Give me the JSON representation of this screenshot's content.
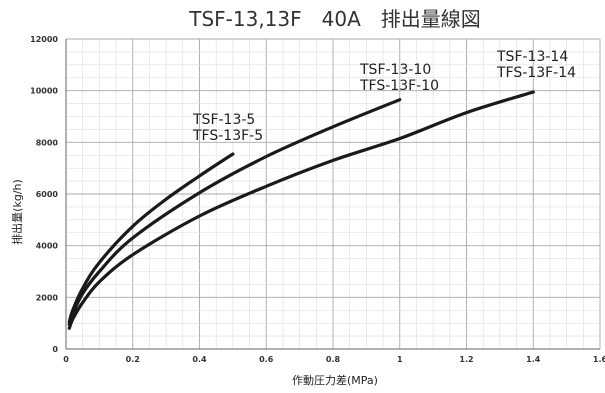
{
  "chart_data": {
    "type": "line",
    "title": "TSF-13,13F　40A　排出量線図",
    "xlabel": "作動圧力差(MPa)",
    "ylabel": "排出量(kg/h)",
    "xlim": [
      0,
      1.6
    ],
    "ylim": [
      0,
      12000
    ],
    "x_ticks": [
      "0",
      "0.2",
      "0.4",
      "0.6",
      "0.8",
      "1",
      "1.2",
      "1.4",
      "1.6"
    ],
    "y_ticks": [
      "0",
      "2000",
      "4000",
      "6000",
      "8000",
      "10000",
      "12000"
    ],
    "grid": true,
    "series": [
      {
        "label_lines": [
          "TSF-13-5",
          "TFS-13F-5"
        ],
        "x": [
          0.01,
          0.02,
          0.05,
          0.1,
          0.2,
          0.3,
          0.4,
          0.5
        ],
        "y": [
          1050,
          1500,
          2350,
          3350,
          4750,
          5800,
          6700,
          7550
        ]
      },
      {
        "label_lines": [
          "TSF-13-10",
          "TFS-13F-10"
        ],
        "x": [
          0.01,
          0.02,
          0.05,
          0.1,
          0.2,
          0.4,
          0.6,
          0.8,
          1.0
        ],
        "y": [
          950,
          1350,
          2150,
          3000,
          4300,
          6050,
          7450,
          8600,
          9650
        ]
      },
      {
        "label_lines": [
          "TSF-13-14",
          "TFS-13F-14"
        ],
        "x": [
          0.01,
          0.02,
          0.05,
          0.1,
          0.2,
          0.4,
          0.6,
          0.8,
          1.0,
          1.2,
          1.4
        ],
        "y": [
          800,
          1150,
          1800,
          2600,
          3650,
          5150,
          6300,
          7300,
          8150,
          9150,
          9950
        ]
      }
    ]
  }
}
